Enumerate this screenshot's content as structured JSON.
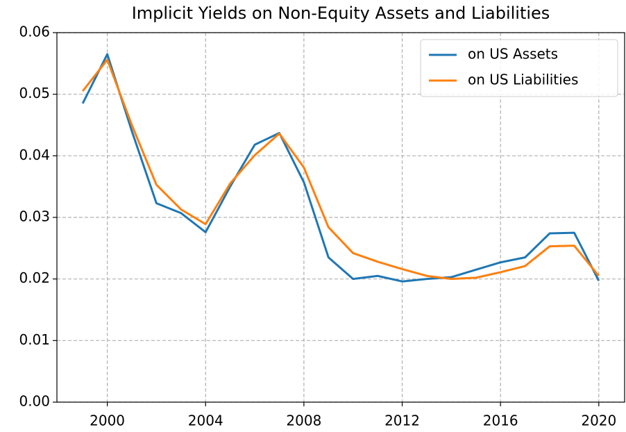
{
  "chart_data": {
    "type": "line",
    "title": "Implicit Yields on Non-Equity Assets and Liabilities",
    "x": [
      1999,
      2000,
      2001,
      2002,
      2003,
      2004,
      2005,
      2006,
      2007,
      2008,
      2009,
      2010,
      2011,
      2012,
      2013,
      2014,
      2015,
      2016,
      2017,
      2018,
      2019,
      2020
    ],
    "series": [
      {
        "name": "on US Assets",
        "color": "#1f77b4",
        "values": [
          0.0485,
          0.0565,
          0.044,
          0.0323,
          0.0307,
          0.0276,
          0.035,
          0.0418,
          0.0437,
          0.0357,
          0.0235,
          0.02,
          0.0205,
          0.0196,
          0.02,
          0.0203,
          0.0215,
          0.0227,
          0.0235,
          0.0274,
          0.0275,
          0.0197
        ]
      },
      {
        "name": "on US Liabilities",
        "color": "#ff7f0e",
        "values": [
          0.0505,
          0.0556,
          0.045,
          0.0353,
          0.0313,
          0.0289,
          0.0355,
          0.0401,
          0.0436,
          0.0381,
          0.0284,
          0.0242,
          0.0228,
          0.0216,
          0.0205,
          0.02,
          0.0202,
          0.0211,
          0.0221,
          0.0253,
          0.0254,
          0.0205
        ]
      }
    ],
    "xlim": [
      1997.95,
      2021.05
    ],
    "xticks": [
      2000,
      2004,
      2008,
      2012,
      2016,
      2020
    ],
    "ylim": [
      0,
      0.06
    ],
    "yticks": [
      {
        "value": 0,
        "label": "0.00"
      },
      {
        "value": 0.01,
        "label": "0.01"
      },
      {
        "value": 0.02,
        "label": "0.02"
      },
      {
        "value": 0.03,
        "label": "0.03"
      },
      {
        "value": 0.04,
        "label": "0.04"
      },
      {
        "value": 0.05,
        "label": "0.05"
      },
      {
        "value": 0.06,
        "label": "0.06"
      }
    ],
    "grid": true,
    "legend": "upper right"
  }
}
